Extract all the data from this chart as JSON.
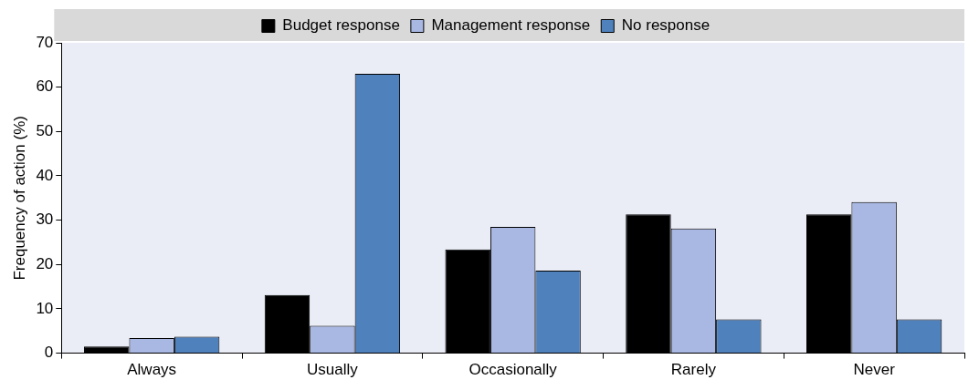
{
  "chart_data": {
    "type": "bar",
    "ylabel": "Frequency of action (%)",
    "categories": [
      "Always",
      "Usually",
      "Occasionally",
      "Rarely",
      "Never"
    ],
    "series": [
      {
        "name": "Budget response",
        "color": "#000000",
        "values": [
          1.5,
          13.1,
          23.4,
          31.3,
          31.3
        ]
      },
      {
        "name": "Management response",
        "color": "#a9b8e3",
        "values": [
          3.4,
          6.2,
          28.5,
          28.1,
          34.1
        ]
      },
      {
        "name": "No response",
        "color": "#4f81bd",
        "values": [
          3.7,
          63.0,
          18.6,
          7.6,
          7.6
        ]
      }
    ],
    "ylim": [
      0,
      70
    ],
    "yticks": [
      0,
      10,
      20,
      30,
      40,
      50,
      60,
      70
    ],
    "grid": false,
    "legend": "top"
  }
}
